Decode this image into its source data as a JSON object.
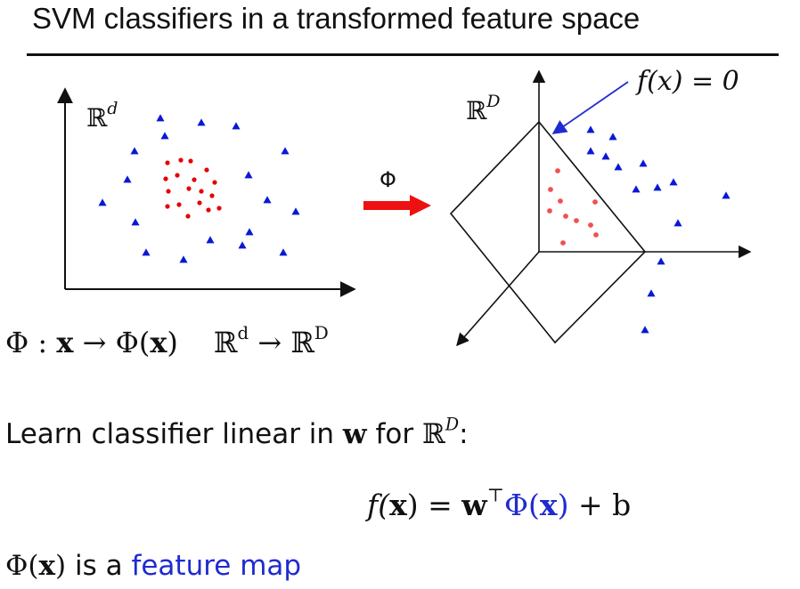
{
  "title": "SVM classifiers in a transformed feature space",
  "diagram": {
    "left_space_label": {
      "base": "ℝ",
      "sup": "d"
    },
    "right_space_label": {
      "base": "ℝ",
      "sup": "D"
    },
    "map_arrow_label": "Φ",
    "boundary_label": "f(x) = 0",
    "colors": {
      "class_red": "#e60000",
      "class_blue": "#0a18d6",
      "arrow": "#ee1111",
      "pointer": "#1f2bd0",
      "ink": "#111111"
    }
  },
  "map_line": {
    "phi": "Φ",
    "colon": " : ",
    "x": "x",
    "arrow": " → ",
    "phi_x_open": "Φ(",
    "phi_x_close": ")",
    "space_from": "ℝ",
    "sup_from": "d",
    "space_arrow": " → ",
    "space_to": "ℝ",
    "sup_to": "D"
  },
  "learn_line": {
    "prefix": "Learn classifier linear in ",
    "w": "w",
    "middle": " for ",
    "space": "ℝ",
    "sup": "D",
    "suffix": ":"
  },
  "formula": {
    "f_open": "f(",
    "x": "x",
    "f_close": ") = ",
    "w": "w",
    "transpose": "⊤",
    "phi_open": "Φ(",
    "phi_x": "x",
    "phi_close": ")",
    "plus_b": " + b"
  },
  "feature_line": {
    "phi_open": "Φ(",
    "x": "x",
    "phi_close": ")",
    "middle": " is a ",
    "link": "feature map"
  }
}
